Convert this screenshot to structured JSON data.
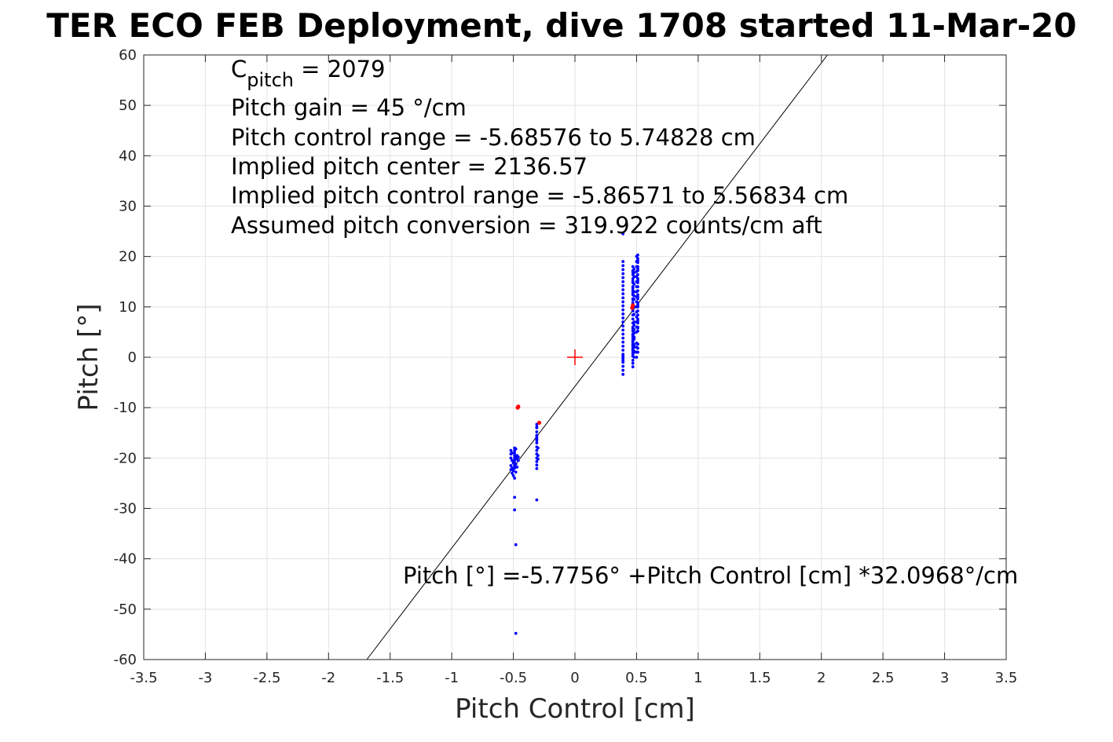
{
  "chart_data": {
    "type": "scatter",
    "title": "TER ECO FEB Deployment, dive 1708 started 11-Mar-20",
    "xlabel": "Pitch Control [cm]",
    "ylabel": "Pitch [°]",
    "xlim": [
      -3.5,
      3.5
    ],
    "ylim": [
      -60,
      60
    ],
    "xticks": [
      -3.5,
      -3,
      -2.5,
      -2,
      -1.5,
      -1,
      -0.5,
      0,
      0.5,
      1,
      1.5,
      2,
      2.5,
      3,
      3.5
    ],
    "xtick_labels": [
      "-3.5",
      "-3",
      "-2.5",
      "-2",
      "-1.5",
      "-1",
      "-0.5",
      "0",
      "0.5",
      "1",
      "1.5",
      "2",
      "2.5",
      "3",
      "3.5"
    ],
    "yticks": [
      60,
      50,
      40,
      30,
      20,
      10,
      0,
      -10,
      -20,
      -30,
      -40,
      -50,
      -60
    ],
    "ytick_labels": [
      "60",
      "50",
      "40",
      "30",
      "20",
      "10",
      "0",
      "-10",
      "-20",
      "-30",
      "-40",
      "-50",
      "-60"
    ],
    "grid": true,
    "annotations": {
      "c_pitch_prefix": "C",
      "c_pitch_sub": "pitch",
      "c_pitch_value": " = 2079",
      "lines": [
        "Pitch gain = 45 °/cm",
        "Pitch control range = -5.68576 to 5.74828 cm",
        "Implied pitch center = 2136.57",
        "Implied pitch control range = -5.86571 to 5.56834 cm",
        "Assumed pitch conversion = 319.922 counts/cm aft"
      ],
      "fit_equation": "Pitch [°] =-5.7756° +Pitch Control [cm] *32.0968°/cm"
    },
    "fit_line": {
      "intercept": -5.7756,
      "slope": 32.0968
    },
    "center_marker": {
      "x": 0,
      "y": 0,
      "color": "#ff0000"
    },
    "series": [
      {
        "color": "#0000ff",
        "x": [
          -0.52,
          -0.52,
          -0.52,
          -0.52,
          -0.52,
          -0.51,
          -0.51,
          -0.51,
          -0.51,
          -0.5,
          -0.5,
          -0.5,
          -0.49,
          -0.49,
          -0.49,
          -0.49,
          -0.49,
          -0.49,
          -0.49,
          -0.49,
          -0.49,
          -0.49,
          -0.49,
          -0.49,
          -0.48,
          -0.48,
          -0.48,
          -0.48,
          -0.48,
          -0.48,
          -0.47,
          -0.47,
          -0.47,
          -0.46,
          -0.46,
          -0.31,
          -0.31,
          -0.31,
          -0.31,
          -0.31,
          -0.31,
          -0.31,
          -0.31,
          -0.31,
          -0.31,
          -0.31,
          -0.31,
          -0.31,
          -0.31,
          -0.31,
          -0.31,
          -0.3,
          -0.3,
          -0.3,
          -0.31,
          0.39,
          0.39,
          0.39,
          0.39,
          0.39,
          0.39,
          0.39,
          0.39,
          0.39,
          0.39,
          0.39,
          0.39,
          0.39,
          0.39,
          0.39,
          0.39,
          0.39,
          0.39,
          0.39,
          0.39,
          0.39,
          0.39,
          0.39,
          0.39,
          0.39,
          0.39,
          0.39,
          0.39,
          0.39,
          0.39,
          0.39,
          0.39,
          0.47,
          0.47,
          0.47,
          0.47,
          0.47,
          0.47,
          0.47,
          0.47,
          0.47,
          0.47,
          0.47,
          0.47,
          0.47,
          0.47,
          0.47,
          0.47,
          0.47,
          0.47,
          0.47,
          0.47,
          0.47,
          0.47,
          0.47,
          0.47,
          0.47,
          0.47,
          0.47,
          0.47,
          0.47,
          0.47,
          0.47,
          0.47,
          0.47,
          0.47,
          0.47,
          0.47,
          0.47,
          0.47,
          0.47,
          0.47,
          0.47,
          0.47,
          0.47,
          0.48,
          0.48,
          0.48,
          0.48,
          0.48,
          0.48,
          0.48,
          0.48,
          0.48,
          0.48,
          0.48,
          0.48,
          0.48,
          0.48,
          0.48,
          0.48,
          0.48,
          0.48,
          0.48,
          0.48,
          0.5,
          0.5,
          0.5,
          0.5,
          0.5,
          0.5,
          0.5,
          0.5,
          0.5,
          0.5,
          0.5,
          0.5,
          0.5,
          0.5,
          0.5,
          0.5,
          0.5,
          0.5,
          0.5,
          0.5,
          0.51,
          0.51,
          0.51,
          0.51,
          0.51,
          0.51,
          0.51,
          0.51,
          0.51,
          0.51,
          0.51,
          0.51,
          0.51,
          0.51,
          0.51,
          0.51,
          0.51,
          0.51,
          0.51,
          0.51,
          0.51,
          0.51,
          0.51,
          0.51,
          0.51,
          0.51,
          0.51,
          0.51,
          0.51,
          0.51
        ],
        "y": [
          -18.5,
          -19.2,
          -20.0,
          -21.5,
          -22.3,
          -19.0,
          -20.5,
          -22.0,
          -23.0,
          -21.0,
          -22.5,
          -23.5,
          -18.0,
          -18.5,
          -19.0,
          -19.5,
          -20.0,
          -20.5,
          -21.0,
          -21.5,
          -22.0,
          -24.0,
          -27.8,
          -30.3,
          -18.2,
          -19.8,
          -21.2,
          -22.8,
          -37.2,
          -54.8,
          -19.5,
          -20.2,
          -21.8,
          -19.8,
          -20.5,
          -13.3,
          -14.0,
          -14.8,
          -15.5,
          -16.2,
          -17.0,
          -17.8,
          -18.5,
          -19.2,
          -20.0,
          -20.7,
          -21.4,
          -22.1,
          -28.3,
          -13.8,
          -15.8,
          -20.2,
          -19.5,
          -18.0,
          -16.5,
          19.0,
          18.2,
          17.4,
          16.6,
          15.8,
          15.0,
          14.2,
          13.4,
          12.6,
          11.8,
          11.0,
          10.2,
          9.4,
          8.6,
          7.8,
          7.0,
          6.2,
          5.4,
          4.6,
          3.8,
          3.0,
          2.2,
          1.4,
          0.6,
          -0.2,
          -1.0,
          -1.8,
          -2.6,
          -3.4,
          0.2,
          -0.6,
          24.5,
          18.0,
          17.2,
          16.4,
          15.6,
          14.8,
          14.0,
          13.2,
          12.4,
          11.6,
          10.8,
          10.0,
          9.2,
          8.4,
          7.6,
          6.8,
          6.0,
          5.2,
          4.6,
          4.2,
          3.8,
          3.4,
          3.0,
          2.6,
          2.2,
          1.8,
          1.4,
          1.0,
          0.6,
          0.2,
          -0.6,
          -1.2,
          -1.9,
          16.9,
          15.1,
          13.7,
          5.6,
          4.4,
          3.2,
          2.4,
          1.6,
          12.8,
          11.4,
          9.6,
          17.5,
          16.0,
          14.5,
          13.0,
          11.5,
          10.0,
          8.5,
          7.0,
          5.5,
          4.0,
          2.5,
          1.0,
          0.0,
          3.6,
          4.8,
          6.4,
          2.0,
          1.2,
          16.8,
          12.2,
          20.0,
          19.0,
          18.0,
          17.0,
          16.0,
          15.0,
          14.0,
          13.0,
          12.0,
          11.0,
          10.0,
          9.0,
          8.0,
          7.0,
          6.0,
          5.0,
          2.8,
          2.0,
          1.0,
          0.0,
          20.3,
          19.6,
          18.8,
          18.0,
          17.2,
          16.4,
          15.6,
          14.8,
          14.0,
          13.2,
          12.4,
          11.6,
          10.8,
          10.0,
          9.2,
          8.4,
          7.6,
          6.8,
          6.0,
          5.2,
          2.6,
          1.8,
          1.0,
          12.0,
          10.4,
          7.2,
          5.8,
          19.2,
          17.6,
          15.2
        ]
      },
      {
        "color": "#ff0000",
        "x": [
          -0.465,
          -0.46,
          -0.29,
          0.465,
          0.47
        ],
        "y": [
          -10.0,
          -9.8,
          -13.0,
          9.8,
          10.3
        ]
      }
    ]
  }
}
